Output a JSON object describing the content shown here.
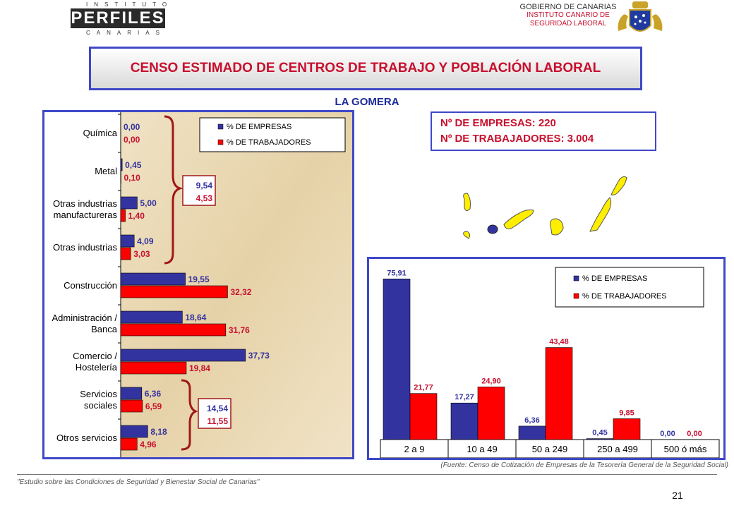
{
  "header": {
    "logo_top": "INSTITUTO",
    "logo_main": "PERFILES",
    "logo_bottom": "CANARIAS",
    "gov_line1": "GOBIERNO DE CANARIAS",
    "gov_line2": "INSTITUTO CANARIO DE",
    "gov_line3": "SEGURIDAD LABORAL"
  },
  "title": "CENSO ESTIMADO DE CENTROS DE TRABAJO Y POBLACIÓN LABORAL",
  "region": "LA GOMERA",
  "info": {
    "empresas": "Nº DE EMPRESAS: 220",
    "trabajadores": "Nº DE TRABAJADORES: 3.004"
  },
  "colors": {
    "empresas": "#3333a0",
    "trabajadores": "#ff0000",
    "accent_border": "#3f48c8",
    "title_red": "#c8102e",
    "map_island": "#ffee00",
    "map_highlight": "#3333a0"
  },
  "chart_data": [
    {
      "type": "bar",
      "orientation": "horizontal",
      "categories": [
        "Química",
        "Metal",
        "Otras industrias manufactureras",
        "Otras industrias",
        "Construcción",
        "Administración / Banca",
        "Comercio / Hostelería",
        "Servicios sociales",
        "Otros servicios"
      ],
      "category_lines": [
        [
          "Química"
        ],
        [
          "Metal"
        ],
        [
          "Otras industrias",
          "manufactureras"
        ],
        [
          "Otras industrias"
        ],
        [
          "Construcción"
        ],
        [
          "Administración /",
          "Banca"
        ],
        [
          "Comercio /",
          "Hostelería"
        ],
        [
          "Servicios",
          "sociales"
        ],
        [
          "Otros servicios"
        ]
      ],
      "value_labels": {
        "empresas": [
          "0,00",
          "0,45",
          "5,00",
          "4,09",
          "19,55",
          "18,64",
          "37,73",
          "6,36",
          "8,18"
        ],
        "trabajadores": [
          "0,00",
          "0,10",
          "1,40",
          "3,03",
          "32,32",
          "31,76",
          "19,84",
          "6,59",
          "4,96"
        ]
      },
      "series": [
        {
          "name": "% DE EMPRESAS",
          "values": [
            0.0,
            0.45,
            5.0,
            4.09,
            19.55,
            18.64,
            37.73,
            6.36,
            8.18
          ]
        },
        {
          "name": "% DE TRABAJADORES",
          "values": [
            0.0,
            0.1,
            1.4,
            3.03,
            32.32,
            31.76,
            19.84,
            6.59,
            4.96
          ]
        }
      ],
      "annotations": [
        {
          "group": "industria",
          "empresas": "9,54",
          "trabajadores": "4,53"
        },
        {
          "group": "servicios",
          "empresas": "14,54",
          "trabajadores": "11,55"
        }
      ],
      "xlim": [
        0,
        70
      ],
      "legend": "top-right"
    },
    {
      "type": "bar",
      "orientation": "vertical",
      "categories": [
        "2 a 9",
        "10 a 49",
        "50 a 249",
        "250 a 499",
        "500 ó más"
      ],
      "value_labels": {
        "empresas": [
          "75,91",
          "17,27",
          "6,36",
          "0,45",
          "0,00"
        ],
        "trabajadores": [
          "21,77",
          "24,90",
          "43,48",
          "9,85",
          "0,00"
        ]
      },
      "series": [
        {
          "name": "% DE EMPRESAS",
          "values": [
            75.91,
            17.27,
            6.36,
            0.45,
            0.0
          ]
        },
        {
          "name": "% DE TRABAJADORES",
          "values": [
            21.77,
            24.9,
            43.48,
            9.85,
            0.0
          ]
        }
      ],
      "ylim": [
        0,
        80
      ],
      "legend": "top-right"
    }
  ],
  "source": "(Fuente: Censo de Cotización de Empresas de la Tesorería General de la Seguridad Social)",
  "footer": "\"Estudio sobre las Condiciones de Seguridad y Bienestar Social de Canarias\"",
  "page_number": "21"
}
